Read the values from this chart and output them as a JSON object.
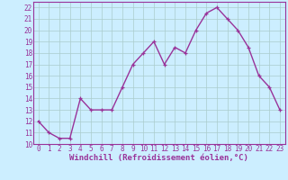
{
  "x": [
    0,
    1,
    2,
    3,
    4,
    5,
    6,
    7,
    8,
    9,
    10,
    11,
    12,
    13,
    14,
    15,
    16,
    17,
    18,
    19,
    20,
    21,
    22,
    23
  ],
  "y": [
    12,
    11,
    10.5,
    10.5,
    14,
    13,
    13,
    13,
    15,
    17,
    18,
    19,
    17,
    18.5,
    18,
    20,
    21.5,
    22,
    21,
    20,
    18.5,
    16,
    15,
    13
  ],
  "line_color": "#993399",
  "marker_color": "#993399",
  "bg_color": "#cceeff",
  "grid_color": "#aacccc",
  "xlabel": "Windchill (Refroidissement éolien,°C)",
  "ylim": [
    10,
    22.5
  ],
  "xlim": [
    -0.5,
    23.5
  ],
  "yticks": [
    10,
    11,
    12,
    13,
    14,
    15,
    16,
    17,
    18,
    19,
    20,
    21,
    22
  ],
  "xticks": [
    0,
    1,
    2,
    3,
    4,
    5,
    6,
    7,
    8,
    9,
    10,
    11,
    12,
    13,
    14,
    15,
    16,
    17,
    18,
    19,
    20,
    21,
    22,
    23
  ],
  "tick_color": "#993399",
  "axis_color": "#993399",
  "label_fontsize": 6.5,
  "tick_fontsize": 5.5,
  "line_width": 1.0,
  "marker_size": 3.5
}
